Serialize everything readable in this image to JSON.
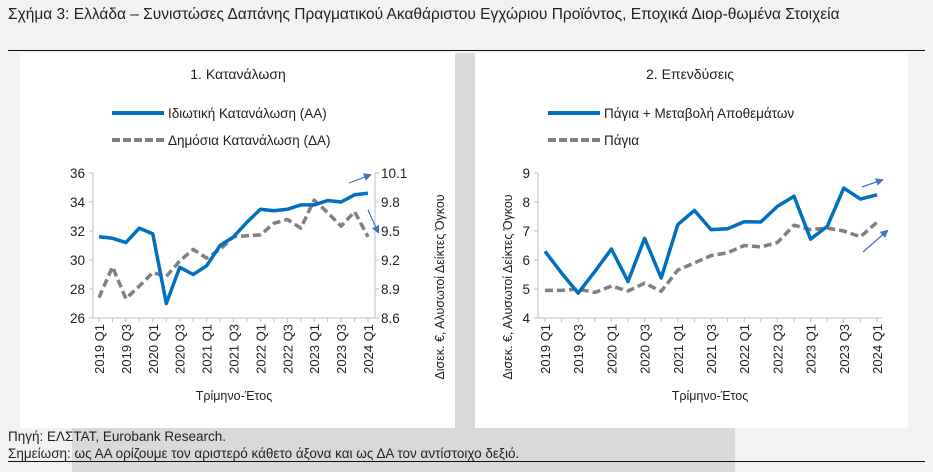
{
  "title": "Σχήμα 3: Ελλάδα – Συνιστώσες Δαπάνης Πραγματικού Ακαθάριστου Εγχώριου Προϊόντος, Εποχικά Διορ-θωμένα Στοιχεία",
  "footer": {
    "source": "Πηγή: ΕΛΣΤΑΤ, Eurobank Research.",
    "note": "Σημείωση: ως ΑΑ ορίζουμε τον αριστερό κάθετο άξονα και ως ΔΑ τον αντίστοιχο δεξιό."
  },
  "colors": {
    "blue": "#0070c0",
    "gray": "#808080",
    "arrow": "#4472c4"
  },
  "chart_data": [
    {
      "type": "line",
      "title": "1. Κατανάλωση",
      "xlabel": "Τρίμηνο-Έτος",
      "ylabel_right": "Δισεκ. €, Αλυσωτοί Δείκτες Όγκου",
      "x": [
        "2019 Q1",
        "2019 Q2",
        "2019 Q3",
        "2019 Q4",
        "2020 Q1",
        "2020 Q2",
        "2020 Q3",
        "2020 Q4",
        "2021 Q1",
        "2021 Q2",
        "2021 Q3",
        "2021 Q4",
        "2022 Q1",
        "2022 Q2",
        "2022 Q3",
        "2022 Q4",
        "2023 Q1",
        "2023 Q2",
        "2023 Q3",
        "2023 Q4",
        "2024 Q1"
      ],
      "xticks": [
        "2019 Q1",
        "2019 Q3",
        "2020 Q1",
        "2020 Q3",
        "2021 Q1",
        "2021 Q3",
        "2022 Q1",
        "2022 Q3",
        "2023 Q1",
        "2023 Q3",
        "2024 Q1"
      ],
      "ylim_left": [
        26,
        36
      ],
      "yticks_left": [
        "26",
        "28",
        "30",
        "32",
        "34",
        "36"
      ],
      "ylim_right": [
        8.6,
        10.1
      ],
      "yticks_right": [
        "8.6",
        "8.9",
        "9.2",
        "9.5",
        "9.8",
        "10.1"
      ],
      "legend": "top",
      "series": [
        {
          "name": "Ιδιωτική Κατανάλωση (ΑΑ)",
          "axis": "left",
          "style": "solid",
          "values": [
            31.6,
            31.5,
            31.2,
            32.2,
            31.8,
            27.0,
            29.5,
            29.0,
            29.6,
            31.0,
            31.6,
            32.6,
            33.5,
            33.4,
            33.5,
            33.8,
            33.8,
            34.1,
            34.0,
            34.5,
            34.6
          ]
        },
        {
          "name": "Δημόσια Κατανάλωση (ΔΑ)",
          "axis": "right",
          "style": "dashed",
          "values": [
            8.81,
            9.13,
            8.8,
            8.93,
            9.07,
            9.03,
            9.19,
            9.31,
            9.22,
            9.31,
            9.44,
            9.45,
            9.46,
            9.58,
            9.62,
            9.53,
            9.82,
            9.69,
            9.55,
            9.7,
            9.44
          ]
        }
      ]
    },
    {
      "type": "line",
      "title": "2. Επενδύσεις",
      "xlabel": "Τρίμηνο-Έτος",
      "ylabel_left": "Δισεκ. €, Αλυσωτοί Δείκτες Όγκου",
      "x": [
        "2019 Q1",
        "2019 Q2",
        "2019 Q3",
        "2019 Q4",
        "2020 Q1",
        "2020 Q2",
        "2020 Q3",
        "2020 Q4",
        "2021 Q1",
        "2021 Q2",
        "2021 Q3",
        "2021 Q4",
        "2022 Q1",
        "2022 Q2",
        "2022 Q3",
        "2022 Q4",
        "2023 Q1",
        "2023 Q2",
        "2023 Q3",
        "2023 Q4",
        "2024 Q1"
      ],
      "xticks": [
        "2019 Q1",
        "2019 Q3",
        "2020 Q1",
        "2020 Q3",
        "2021 Q1",
        "2021 Q3",
        "2022 Q1",
        "2022 Q3",
        "2023 Q1",
        "2023 Q3",
        "2024 Q1"
      ],
      "ylim_left": [
        4,
        9
      ],
      "yticks_left": [
        "4",
        "5",
        "6",
        "7",
        "8",
        "9"
      ],
      "legend": "top",
      "series": [
        {
          "name": "Πάγια + Μεταβολή Αποθεμάτων",
          "axis": "left",
          "style": "solid",
          "values": [
            6.3,
            5.55,
            4.86,
            5.6,
            6.38,
            5.26,
            6.75,
            5.38,
            7.22,
            7.71,
            7.05,
            7.08,
            7.32,
            7.31,
            7.85,
            8.2,
            6.72,
            7.16,
            8.48,
            8.1,
            8.25
          ]
        },
        {
          "name": "Πάγια",
          "axis": "left",
          "style": "dashed",
          "values": [
            4.95,
            4.95,
            5.0,
            4.88,
            5.1,
            4.93,
            5.2,
            4.92,
            5.65,
            5.9,
            6.15,
            6.25,
            6.5,
            6.45,
            6.6,
            7.2,
            7.05,
            7.1,
            7.0,
            6.8,
            7.3
          ]
        }
      ]
    }
  ]
}
